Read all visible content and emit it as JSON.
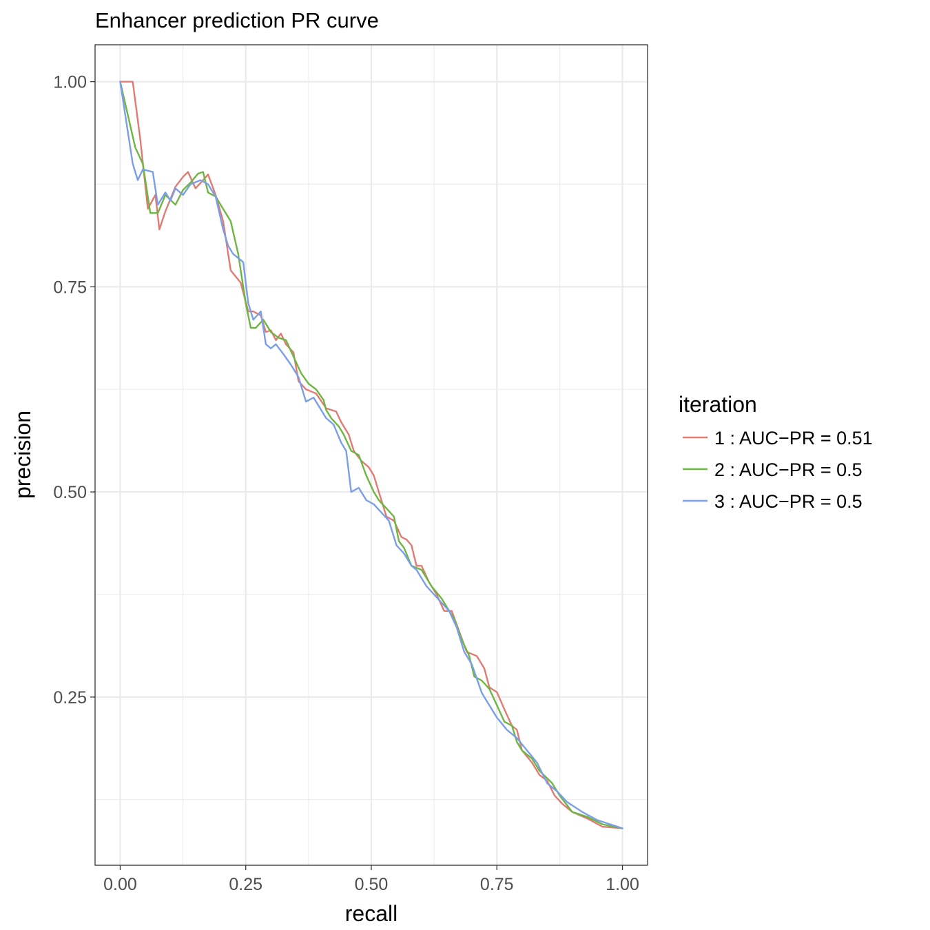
{
  "chart_data": {
    "type": "line",
    "title": "Enhancer prediction PR curve",
    "xlabel": "recall",
    "ylabel": "precision",
    "xlim": [
      -0.05,
      1.05
    ],
    "ylim": [
      0.045,
      1.045
    ],
    "x_ticks": [
      0.0,
      0.25,
      0.5,
      0.75,
      1.0
    ],
    "x_tick_labels": [
      "0.00",
      "0.25",
      "0.50",
      "0.75",
      "1.00"
    ],
    "y_ticks": [
      0.25,
      0.5,
      0.75,
      1.0
    ],
    "y_tick_labels": [
      "0.25",
      "0.50",
      "0.75",
      "1.00"
    ],
    "x_minor_ticks": [
      0.125,
      0.375,
      0.625,
      0.875
    ],
    "y_minor_ticks": [
      0.125,
      0.375,
      0.625,
      0.875
    ],
    "grid": true,
    "legend": {
      "title": "iteration",
      "position": "right"
    },
    "series": [
      {
        "name": "1 : AUC−PR =  0.51",
        "color": "#e07b74",
        "x": [
          0.0,
          0.01,
          0.025,
          0.04,
          0.055,
          0.07,
          0.078,
          0.09,
          0.11,
          0.125,
          0.135,
          0.15,
          0.165,
          0.175,
          0.19,
          0.205,
          0.22,
          0.24,
          0.255,
          0.265,
          0.28,
          0.29,
          0.3,
          0.31,
          0.32,
          0.33,
          0.345,
          0.355,
          0.37,
          0.39,
          0.41,
          0.43,
          0.44,
          0.455,
          0.465,
          0.48,
          0.495,
          0.505,
          0.52,
          0.53,
          0.545,
          0.56,
          0.57,
          0.58,
          0.59,
          0.6,
          0.615,
          0.63,
          0.645,
          0.66,
          0.675,
          0.69,
          0.71,
          0.725,
          0.735,
          0.75,
          0.765,
          0.78,
          0.79,
          0.8,
          0.82,
          0.835,
          0.85,
          0.865,
          0.88,
          0.9,
          0.93,
          0.96,
          1.0
        ],
        "y": [
          1.0,
          1.0,
          1.0,
          0.93,
          0.845,
          0.862,
          0.82,
          0.842,
          0.872,
          0.884,
          0.89,
          0.87,
          0.88,
          0.887,
          0.862,
          0.83,
          0.77,
          0.755,
          0.72,
          0.72,
          0.715,
          0.695,
          0.697,
          0.685,
          0.693,
          0.68,
          0.67,
          0.635,
          0.625,
          0.62,
          0.602,
          0.598,
          0.585,
          0.57,
          0.55,
          0.538,
          0.53,
          0.52,
          0.49,
          0.47,
          0.465,
          0.445,
          0.442,
          0.435,
          0.41,
          0.41,
          0.39,
          0.375,
          0.355,
          0.355,
          0.33,
          0.305,
          0.3,
          0.285,
          0.262,
          0.256,
          0.235,
          0.215,
          0.21,
          0.185,
          0.17,
          0.155,
          0.148,
          0.13,
          0.12,
          0.11,
          0.102,
          0.092,
          0.09
        ]
      },
      {
        "name": "2 : AUC−PR =  0.5",
        "color": "#6db642",
        "x": [
          0.0,
          0.015,
          0.03,
          0.045,
          0.06,
          0.075,
          0.09,
          0.11,
          0.125,
          0.14,
          0.155,
          0.165,
          0.175,
          0.19,
          0.205,
          0.22,
          0.235,
          0.25,
          0.26,
          0.27,
          0.285,
          0.3,
          0.315,
          0.33,
          0.345,
          0.36,
          0.375,
          0.39,
          0.405,
          0.41,
          0.42,
          0.435,
          0.445,
          0.46,
          0.475,
          0.49,
          0.505,
          0.515,
          0.53,
          0.545,
          0.555,
          0.565,
          0.58,
          0.6,
          0.62,
          0.64,
          0.65,
          0.665,
          0.68,
          0.695,
          0.705,
          0.72,
          0.735,
          0.75,
          0.765,
          0.78,
          0.79,
          0.8,
          0.82,
          0.835,
          0.86,
          0.875,
          0.9,
          0.93,
          0.96,
          1.0
        ],
        "y": [
          1.0,
          0.96,
          0.92,
          0.9,
          0.84,
          0.84,
          0.862,
          0.85,
          0.868,
          0.877,
          0.888,
          0.89,
          0.865,
          0.86,
          0.845,
          0.83,
          0.79,
          0.73,
          0.7,
          0.7,
          0.71,
          0.695,
          0.688,
          0.685,
          0.665,
          0.645,
          0.632,
          0.625,
          0.612,
          0.6,
          0.59,
          0.58,
          0.57,
          0.55,
          0.545,
          0.52,
          0.5,
          0.49,
          0.48,
          0.47,
          0.44,
          0.432,
          0.41,
          0.405,
          0.385,
          0.37,
          0.36,
          0.345,
          0.32,
          0.3,
          0.275,
          0.27,
          0.26,
          0.24,
          0.22,
          0.215,
          0.195,
          0.185,
          0.175,
          0.16,
          0.145,
          0.13,
          0.11,
          0.104,
          0.095,
          0.09
        ]
      },
      {
        "name": "3 : AUC−PR =  0.5",
        "color": "#7a9ee8",
        "x": [
          0.0,
          0.01,
          0.025,
          0.035,
          0.045,
          0.065,
          0.075,
          0.09,
          0.1,
          0.11,
          0.125,
          0.14,
          0.16,
          0.175,
          0.19,
          0.205,
          0.215,
          0.225,
          0.245,
          0.255,
          0.265,
          0.28,
          0.29,
          0.3,
          0.31,
          0.325,
          0.34,
          0.355,
          0.37,
          0.385,
          0.4,
          0.41,
          0.425,
          0.44,
          0.45,
          0.46,
          0.475,
          0.49,
          0.505,
          0.52,
          0.535,
          0.55,
          0.565,
          0.58,
          0.59,
          0.61,
          0.625,
          0.64,
          0.655,
          0.67,
          0.685,
          0.7,
          0.72,
          0.735,
          0.75,
          0.77,
          0.79,
          0.81,
          0.83,
          0.85,
          0.87,
          0.89,
          0.92,
          0.95,
          1.0
        ],
        "y": [
          1.0,
          0.96,
          0.9,
          0.88,
          0.893,
          0.89,
          0.85,
          0.865,
          0.855,
          0.87,
          0.862,
          0.875,
          0.88,
          0.875,
          0.86,
          0.82,
          0.8,
          0.79,
          0.78,
          0.73,
          0.71,
          0.72,
          0.68,
          0.675,
          0.68,
          0.668,
          0.655,
          0.64,
          0.61,
          0.615,
          0.6,
          0.59,
          0.582,
          0.56,
          0.55,
          0.5,
          0.505,
          0.49,
          0.485,
          0.475,
          0.465,
          0.435,
          0.425,
          0.41,
          0.405,
          0.385,
          0.375,
          0.365,
          0.355,
          0.335,
          0.305,
          0.29,
          0.255,
          0.24,
          0.225,
          0.21,
          0.2,
          0.185,
          0.17,
          0.145,
          0.135,
          0.122,
          0.11,
          0.1,
          0.09
        ]
      }
    ]
  }
}
